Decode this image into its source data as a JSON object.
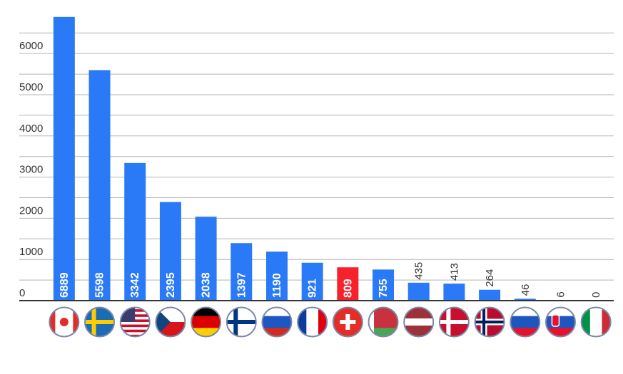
{
  "chart_data": {
    "type": "bar",
    "categories": [
      null,
      null,
      null,
      null,
      null,
      null,
      null,
      null,
      null,
      null,
      null,
      null,
      null,
      null,
      null,
      null
    ],
    "values": [
      6889,
      5598,
      3342,
      2395,
      2038,
      1397,
      1190,
      921,
      809,
      755,
      435,
      413,
      264,
      46,
      6,
      0
    ],
    "colors": [
      "#2a7af7",
      "#2a7af7",
      "#2a7af7",
      "#2a7af7",
      "#2a7af7",
      "#2a7af7",
      "#2a7af7",
      "#2a7af7",
      "#f7212b",
      "#2a7af7",
      "#2a7af7",
      "#2a7af7",
      "#2a7af7",
      "#2a7af7",
      "#2a7af7",
      "#2a7af7"
    ],
    "ylim": [
      0,
      6920
    ],
    "yticks": [
      0,
      1000,
      2000,
      3000,
      4000,
      5000,
      6000
    ],
    "ygrid": [
      500,
      1000,
      1500,
      2000,
      2500,
      3000,
      3500,
      4000,
      4500,
      5000,
      5500,
      6000,
      6500
    ],
    "grid": true
  }
}
